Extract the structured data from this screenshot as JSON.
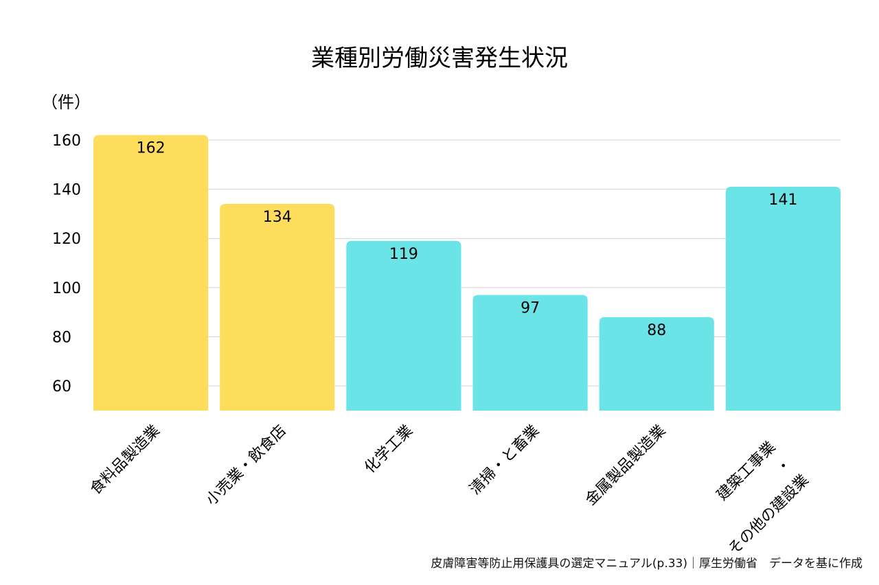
{
  "chart_data": {
    "type": "bar",
    "title": "業種別労働災害発生状況",
    "ylabel": "（件）",
    "xlabel": "",
    "ylim": [
      50,
      165
    ],
    "yticks": [
      60,
      80,
      100,
      120,
      140,
      160
    ],
    "grid": true,
    "categories": [
      [
        "食料品製造業"
      ],
      [
        "小売業・飲食店"
      ],
      [
        "化学工業"
      ],
      [
        "清掃・と畜業"
      ],
      [
        "金属製品製造業"
      ],
      [
        "建築工事業",
        "・",
        "その他の建設業"
      ]
    ],
    "values": [
      162,
      134,
      119,
      97,
      88,
      141
    ],
    "bar_colors": [
      "#FFDD5C",
      "#FFDD5C",
      "#6BE4E7",
      "#6BE4E7",
      "#6BE4E7",
      "#6BE4E7"
    ]
  },
  "source": "皮膚障害等防止用保護具の選定マニュアル(p.33)｜厚生労働省　データを基に作成",
  "colors": {
    "grid": "#d2d2d2",
    "text": "#111111"
  }
}
